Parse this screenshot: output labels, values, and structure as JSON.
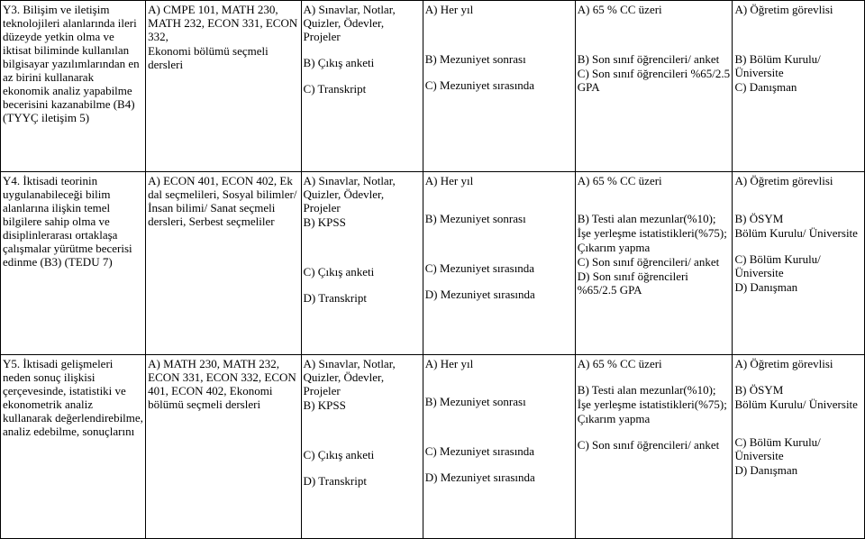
{
  "rows": [
    {
      "c0": [
        "Y3. Bilişim ve iletişim teknolojileri alanlarında ileri düzeyde yetkin olma ve iktisat biliminde kullanılan bilgisayar yazılımlarından en az birini kullanarak ekonomik analiz yapabilme becerisini kazanabilme (B4) (TYYÇ iletişim 5)"
      ],
      "c1": [
        "A) CMPE 101, MATH 230, MATH 232, ECON 331, ECON 332,",
        "Ekonomi bölümü seçmeli dersleri"
      ],
      "c2": [
        "A) Sınavlar, Notlar, Quizler, Ödevler, Projeler",
        "",
        "B) Çıkış anketi",
        "",
        "C) Transkript"
      ],
      "c3": [
        "A) Her yıl",
        "",
        "",
        "",
        "B) Mezuniyet sonrası",
        "",
        "C) Mezuniyet sırasında"
      ],
      "c4": [
        "A) 65 % CC üzeri",
        "",
        "",
        "",
        "B) Son sınıf öğrencileri/ anket",
        "C) Son sınıf öğrencileri %65/2.5 GPA"
      ],
      "c5": [
        "A) Öğretim görevlisi",
        "",
        "",
        "",
        "B) Bölüm Kurulu/ Üniversite",
        "C) Danışman"
      ]
    },
    {
      "c0": [
        "Y4. İktisadi teorinin uygulanabileceği bilim alanlarına ilişkin temel bilgilere sahip olma ve disiplinlerarası ortaklaşa çalışmalar yürütme becerisi edinme (B3) (TEDU 7)"
      ],
      "c1": [
        "A) ECON 401, ECON 402, Ek dal seçmelileri, Sosyal bilimler/ İnsan bilimi/ Sanat seçmeli dersleri, Serbest seçmeliler"
      ],
      "c2": [
        "A) Sınavlar, Notlar, Quizler, Ödevler, Projeler",
        "B) KPSS",
        "",
        "",
        "",
        "C) Çıkış anketi",
        "",
        "D) Transkript"
      ],
      "c3": [
        "A) Her yıl",
        "",
        "",
        "B) Mezuniyet sonrası",
        "",
        "",
        "",
        "C) Mezuniyet sırasında",
        "",
        "D) Mezuniyet sırasında"
      ],
      "c4": [
        "A) 65 % CC üzeri",
        "",
        "",
        "B)  Testi alan mezunlar(%10);",
        "İşe yerleşme istatistikleri(%75);",
        "Çıkarım yapma",
        "C) Son sınıf öğrencileri/ anket",
        "D) Son sınıf öğrencileri %65/2.5 GPA"
      ],
      "c5": [
        "A) Öğretim görevlisi",
        "",
        "",
        "B) ÖSYM",
        "Bölüm Kurulu/ Üniversite",
        "",
        "C) Bölüm Kurulu/ Üniversite",
        "D) Danışman"
      ]
    },
    {
      "c0": [
        "Y5. İktisadi gelişmeleri neden sonuç ilişkisi çerçevesinde, istatistiki ve ekonometrik analiz kullanarak değerlendirebilme, analiz edebilme, sonuçlarını"
      ],
      "c1": [
        "A) MATH 230, MATH 232, ECON 331, ECON 332, ECON 401, ECON 402, Ekonomi bölümü seçmeli dersleri"
      ],
      "c2": [
        "A) Sınavlar, Notlar, Quizler, Ödevler, Projeler",
        "B) KPSS",
        "",
        "",
        "",
        "C) Çıkış anketi",
        "",
        "D) Transkript"
      ],
      "c3": [
        "A) Her yıl",
        "",
        "",
        "B) Mezuniyet sonrası",
        "",
        "",
        "",
        "C) Mezuniyet sırasında",
        "",
        "D) Mezuniyet sırasında"
      ],
      "c4": [
        "A) 65 % CC üzeri",
        "",
        "B) Testi alan mezunlar(%10);",
        "İşe yerleşme istatistikleri(%75);",
        "Çıkarım yapma",
        "",
        "C) Son sınıf öğrencileri/ anket"
      ],
      "c5": [
        "A) Öğretim görevlisi",
        "",
        "B) ÖSYM",
        "Bölüm Kurulu/ Üniversite",
        "",
        "",
        "C) Bölüm Kurulu/ Üniversite",
        "D) Danışman"
      ]
    }
  ]
}
